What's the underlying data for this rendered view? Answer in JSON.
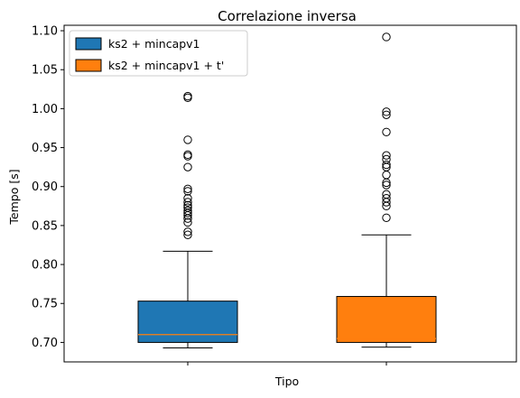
{
  "chart_data": {
    "type": "boxplot",
    "title": "Correlazione inversa",
    "xlabel": "Tipo",
    "ylabel": "Tempo [s]",
    "ylim": [
      0.675,
      1.107
    ],
    "yticks": [
      0.7,
      0.75,
      0.8,
      0.85,
      0.9,
      0.95,
      1.0,
      1.05,
      1.1
    ],
    "ytick_labels": [
      "0.70",
      "0.75",
      "0.80",
      "0.85",
      "0.90",
      "0.95",
      "1.00",
      "1.05",
      "1.10"
    ],
    "grid": false,
    "legend_position": "top-left",
    "series": [
      {
        "name": "ks2 + mincapv1",
        "color": "#1f77b4",
        "whisker_low": 0.693,
        "q1": 0.7,
        "median": 0.71,
        "q3": 0.753,
        "whisker_high": 0.817,
        "outliers": [
          0.838,
          0.842,
          0.854,
          0.859,
          0.863,
          0.866,
          0.869,
          0.873,
          0.876,
          0.88,
          0.885,
          0.894,
          0.897,
          0.925,
          0.939,
          0.941,
          0.96,
          1.014,
          1.016
        ]
      },
      {
        "name": "ks2 + mincapv1 + t'",
        "color": "#ff7f0e",
        "whisker_low": 0.694,
        "q1": 0.7,
        "median": 0.705,
        "q3": 0.759,
        "whisker_high": 0.838,
        "outliers": [
          0.86,
          0.875,
          0.88,
          0.885,
          0.89,
          0.902,
          0.905,
          0.915,
          0.925,
          0.928,
          0.935,
          0.94,
          0.97,
          0.992,
          0.996,
          1.092
        ]
      }
    ]
  }
}
